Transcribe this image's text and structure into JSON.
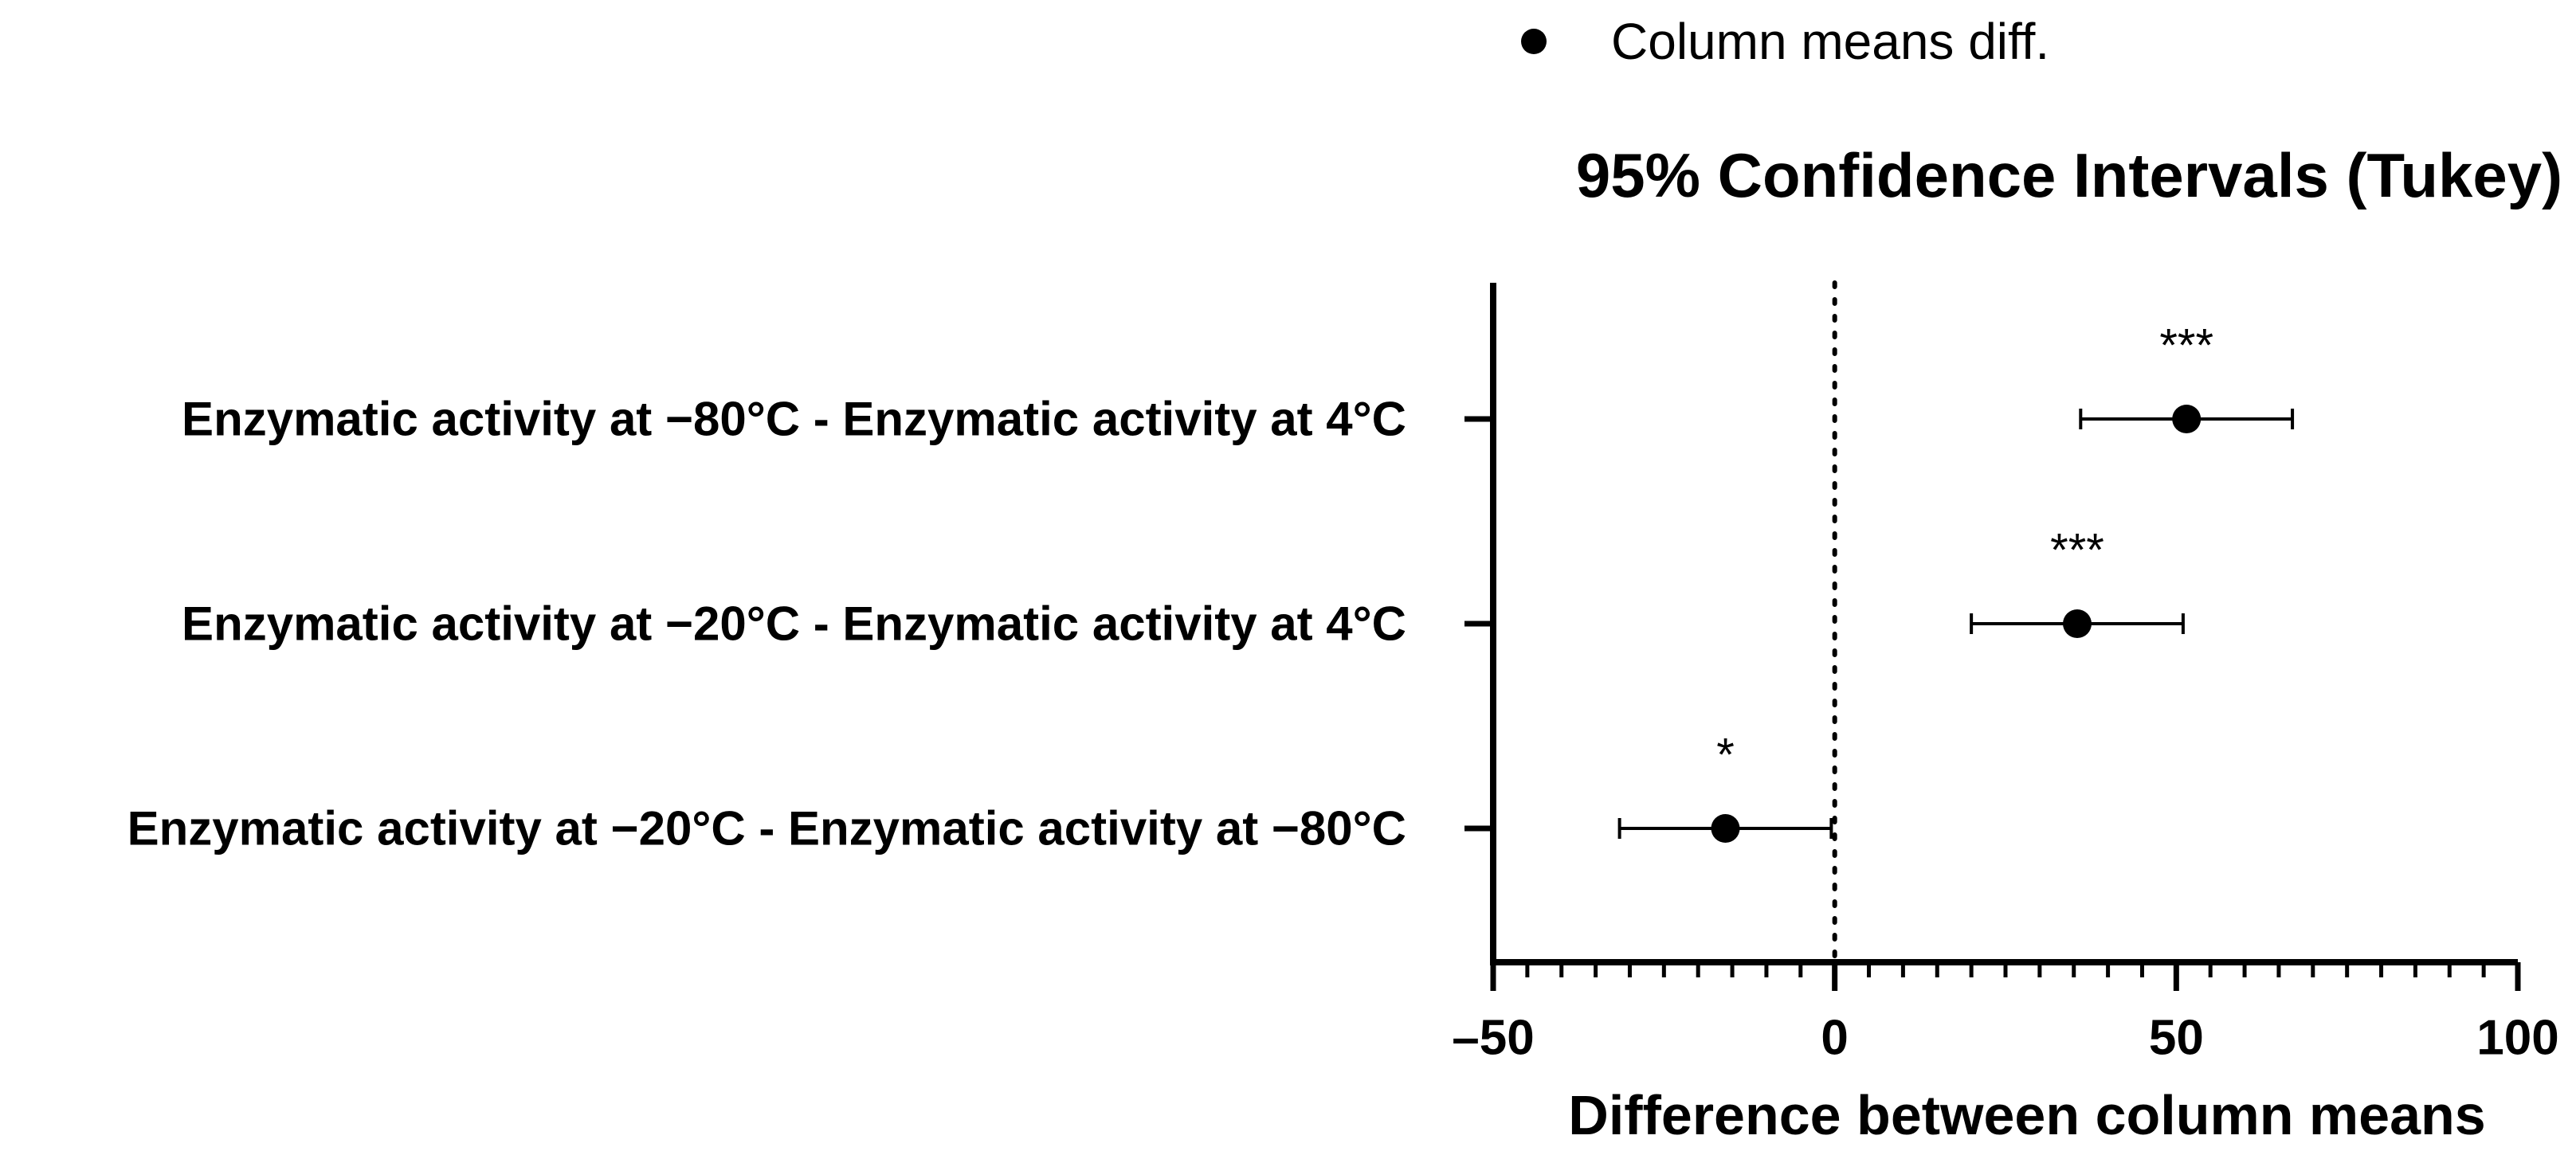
{
  "chart_data": {
    "type": "forest",
    "title": "95% Confidence Intervals (Tukey)",
    "xlabel": "Difference between column means",
    "legend": {
      "label": "Column means diff.",
      "marker": "filled-circle",
      "placement": "top"
    },
    "xlim": [
      -50,
      100
    ],
    "xticks": [
      {
        "value": -50,
        "label": "–50"
      },
      {
        "value": 0,
        "label": "0"
      },
      {
        "value": 50,
        "label": "50"
      },
      {
        "value": 100,
        "label": "100"
      }
    ],
    "minor_tick_step": 5,
    "reference_line": {
      "x": 0,
      "style": "dotted"
    },
    "comparisons": [
      {
        "label": "Enzymatic activity at −80°C - Enzymatic activity at 4°C",
        "mean": 51.5,
        "lower": 36.0,
        "upper": 67.0,
        "significance": "***"
      },
      {
        "label": "Enzymatic activity at −20°C - Enzymatic activity at 4°C",
        "mean": 35.5,
        "lower": 20.0,
        "upper": 51.0,
        "significance": "***"
      },
      {
        "label": "Enzymatic activity at −20°C - Enzymatic activity at −80°C",
        "mean": -16.0,
        "lower": -31.5,
        "upper": -0.5,
        "significance": "*"
      }
    ],
    "colors": {
      "marker": "#000000",
      "axis": "#000000",
      "background": "#ffffff"
    }
  }
}
